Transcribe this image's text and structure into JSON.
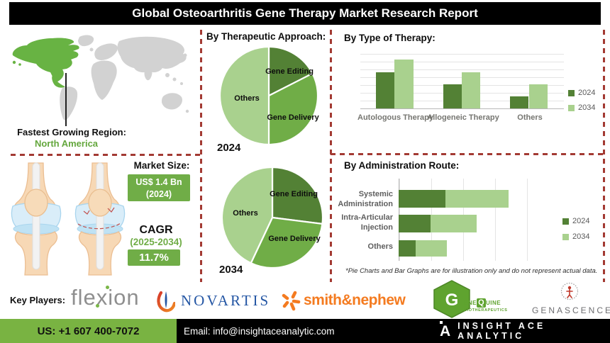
{
  "title": "Global Osteoarthritis Gene Therapy Market Research Report",
  "region": {
    "label": "Fastest Growing Region:",
    "value": "North America"
  },
  "market_size": {
    "label": "Market Size:",
    "value": "US$ 1.4 Bn",
    "year": "(2024)"
  },
  "cagr": {
    "label": "CAGR",
    "period": "(2025-2034)",
    "value": "11.7%"
  },
  "disclaimer": "*Pie Charts and Bar Graphs are for illustration only and do not represent actual data.",
  "chart_data": [
    {
      "type": "pie",
      "title": "By Therapeutic Approach:",
      "year": "2024",
      "slices": [
        {
          "label": "Gene Editing",
          "value": 17.5,
          "color": "#538135"
        },
        {
          "label": "Gene Delivery",
          "value": 32.5,
          "color": "#70AD47"
        },
        {
          "label": "Others",
          "value": 50,
          "color": "#A9D18E"
        }
      ],
      "note": "illustrative only, starts at 12 o'clock clockwise"
    },
    {
      "type": "pie",
      "title": "By Therapeutic Approach:",
      "year": "2034",
      "slices": [
        {
          "label": "Gene Editing",
          "value": 27,
          "color": "#538135"
        },
        {
          "label": "Gene Delivery",
          "value": 30,
          "color": "#70AD47"
        },
        {
          "label": "Others",
          "value": 43,
          "color": "#A9D18E"
        }
      ],
      "note": "illustrative only, starts at 12 o'clock clockwise"
    },
    {
      "type": "bar",
      "title": "By Type of Therapy:",
      "categories": [
        "Autologous Therapy",
        "Allogeneic Therapy",
        "Others"
      ],
      "series": [
        {
          "name": "2024",
          "color": "#538135",
          "values": [
            65,
            43,
            22
          ]
        },
        {
          "name": "2034",
          "color": "#A9D18E",
          "values": [
            88,
            65,
            43
          ]
        }
      ],
      "xlabel": "",
      "ylabel": "",
      "ylim": [
        0,
        100
      ],
      "grid": true,
      "legend_position": "right",
      "note": "no value axis labels shown; heights are illustrative relative units"
    },
    {
      "type": "bar",
      "orientation": "horizontal-stacked",
      "title": "By Administration Route:",
      "categories": [
        "Systemic Administration",
        "Intra-Articular Injection",
        "Others"
      ],
      "series": [
        {
          "name": "2024",
          "color": "#538135",
          "values": [
            28,
            19,
            10
          ]
        },
        {
          "name": "2034",
          "color": "#A9D18E",
          "values": [
            38,
            28,
            19
          ]
        }
      ],
      "xlabel": "",
      "ylabel": "",
      "xlim": [
        0,
        100
      ],
      "grid": true,
      "legend_position": "right",
      "note": "no value axis labels shown; widths are illustrative relative units"
    }
  ],
  "key_players": {
    "label": "Key Players:",
    "companies": [
      "flexion",
      "NOVARTIS",
      "smith&nephew",
      "GeneQuine Biotherapeutics",
      "GENASCENCE"
    ],
    "flexion": {
      "part1": "fle",
      "part2": "x",
      "part3": "ion"
    },
    "novartis": {
      "text": "NOVARTIS"
    },
    "smith_nephew": {
      "text": "smith&nephew"
    },
    "genequine": {
      "g": "G",
      "ene": "ENE",
      "q": "Q",
      "uine": "UINE",
      "sub": "BIOTHERAPEUTICS"
    },
    "genascence": {
      "text": "GENASCENCE"
    }
  },
  "footer": {
    "phone": "US: +1 607 400-7072",
    "email": "Email: info@insightaceanalytic.com",
    "brand": "INSIGHT ACE ANALYTIC",
    "brand_mark": "A"
  },
  "colors": {
    "green_dark": "#538135",
    "green_mid": "#70AD47",
    "green_light": "#A9D18E",
    "map_highlight": "#68B343",
    "map_gray": "#D2D2D2",
    "dashed_border": "#A33A33",
    "footer_green": "#79B342",
    "title_bar": "#000000",
    "novartis_blue": "#2456A4",
    "smith_nephew_orange": "#F47B20"
  }
}
